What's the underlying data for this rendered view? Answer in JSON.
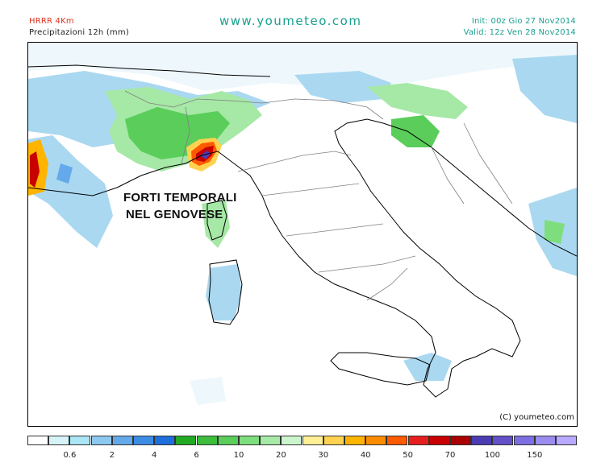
{
  "header": {
    "model": "HRRR 4Km",
    "subtitle": "Precipitazioni 12h (mm)",
    "site": "www.youmeteo.com",
    "init": "Init: 00z Gio  27 Nov2014",
    "valid": "Valid: 12z Ven  28 Nov2014"
  },
  "map": {
    "annotation_line1": "FORTI TEMPORALI",
    "annotation_line2": "NEL GENOVESE",
    "copyright": "(C) youmeteo.com"
  },
  "legend": {
    "colors": [
      "#ffffff",
      "#d6f4f8",
      "#aae6f5",
      "#8cc8f0",
      "#64aaea",
      "#3c8ce4",
      "#1e6edc",
      "#22aa22",
      "#3cbe3c",
      "#5acd5a",
      "#7ede7e",
      "#a6eaa6",
      "#cdf5cd",
      "#fff096",
      "#ffd250",
      "#ffb400",
      "#ff8c00",
      "#ff5a00",
      "#e61e1e",
      "#c80000",
      "#aa0000",
      "#4b3cb4",
      "#6450c8",
      "#7d6ee1",
      "#9b8cf0",
      "#b9aaff"
    ],
    "labels": [
      "0.6",
      "2",
      "4",
      "6",
      "10",
      "20",
      "30",
      "40",
      "50",
      "70",
      "100",
      "150"
    ]
  }
}
